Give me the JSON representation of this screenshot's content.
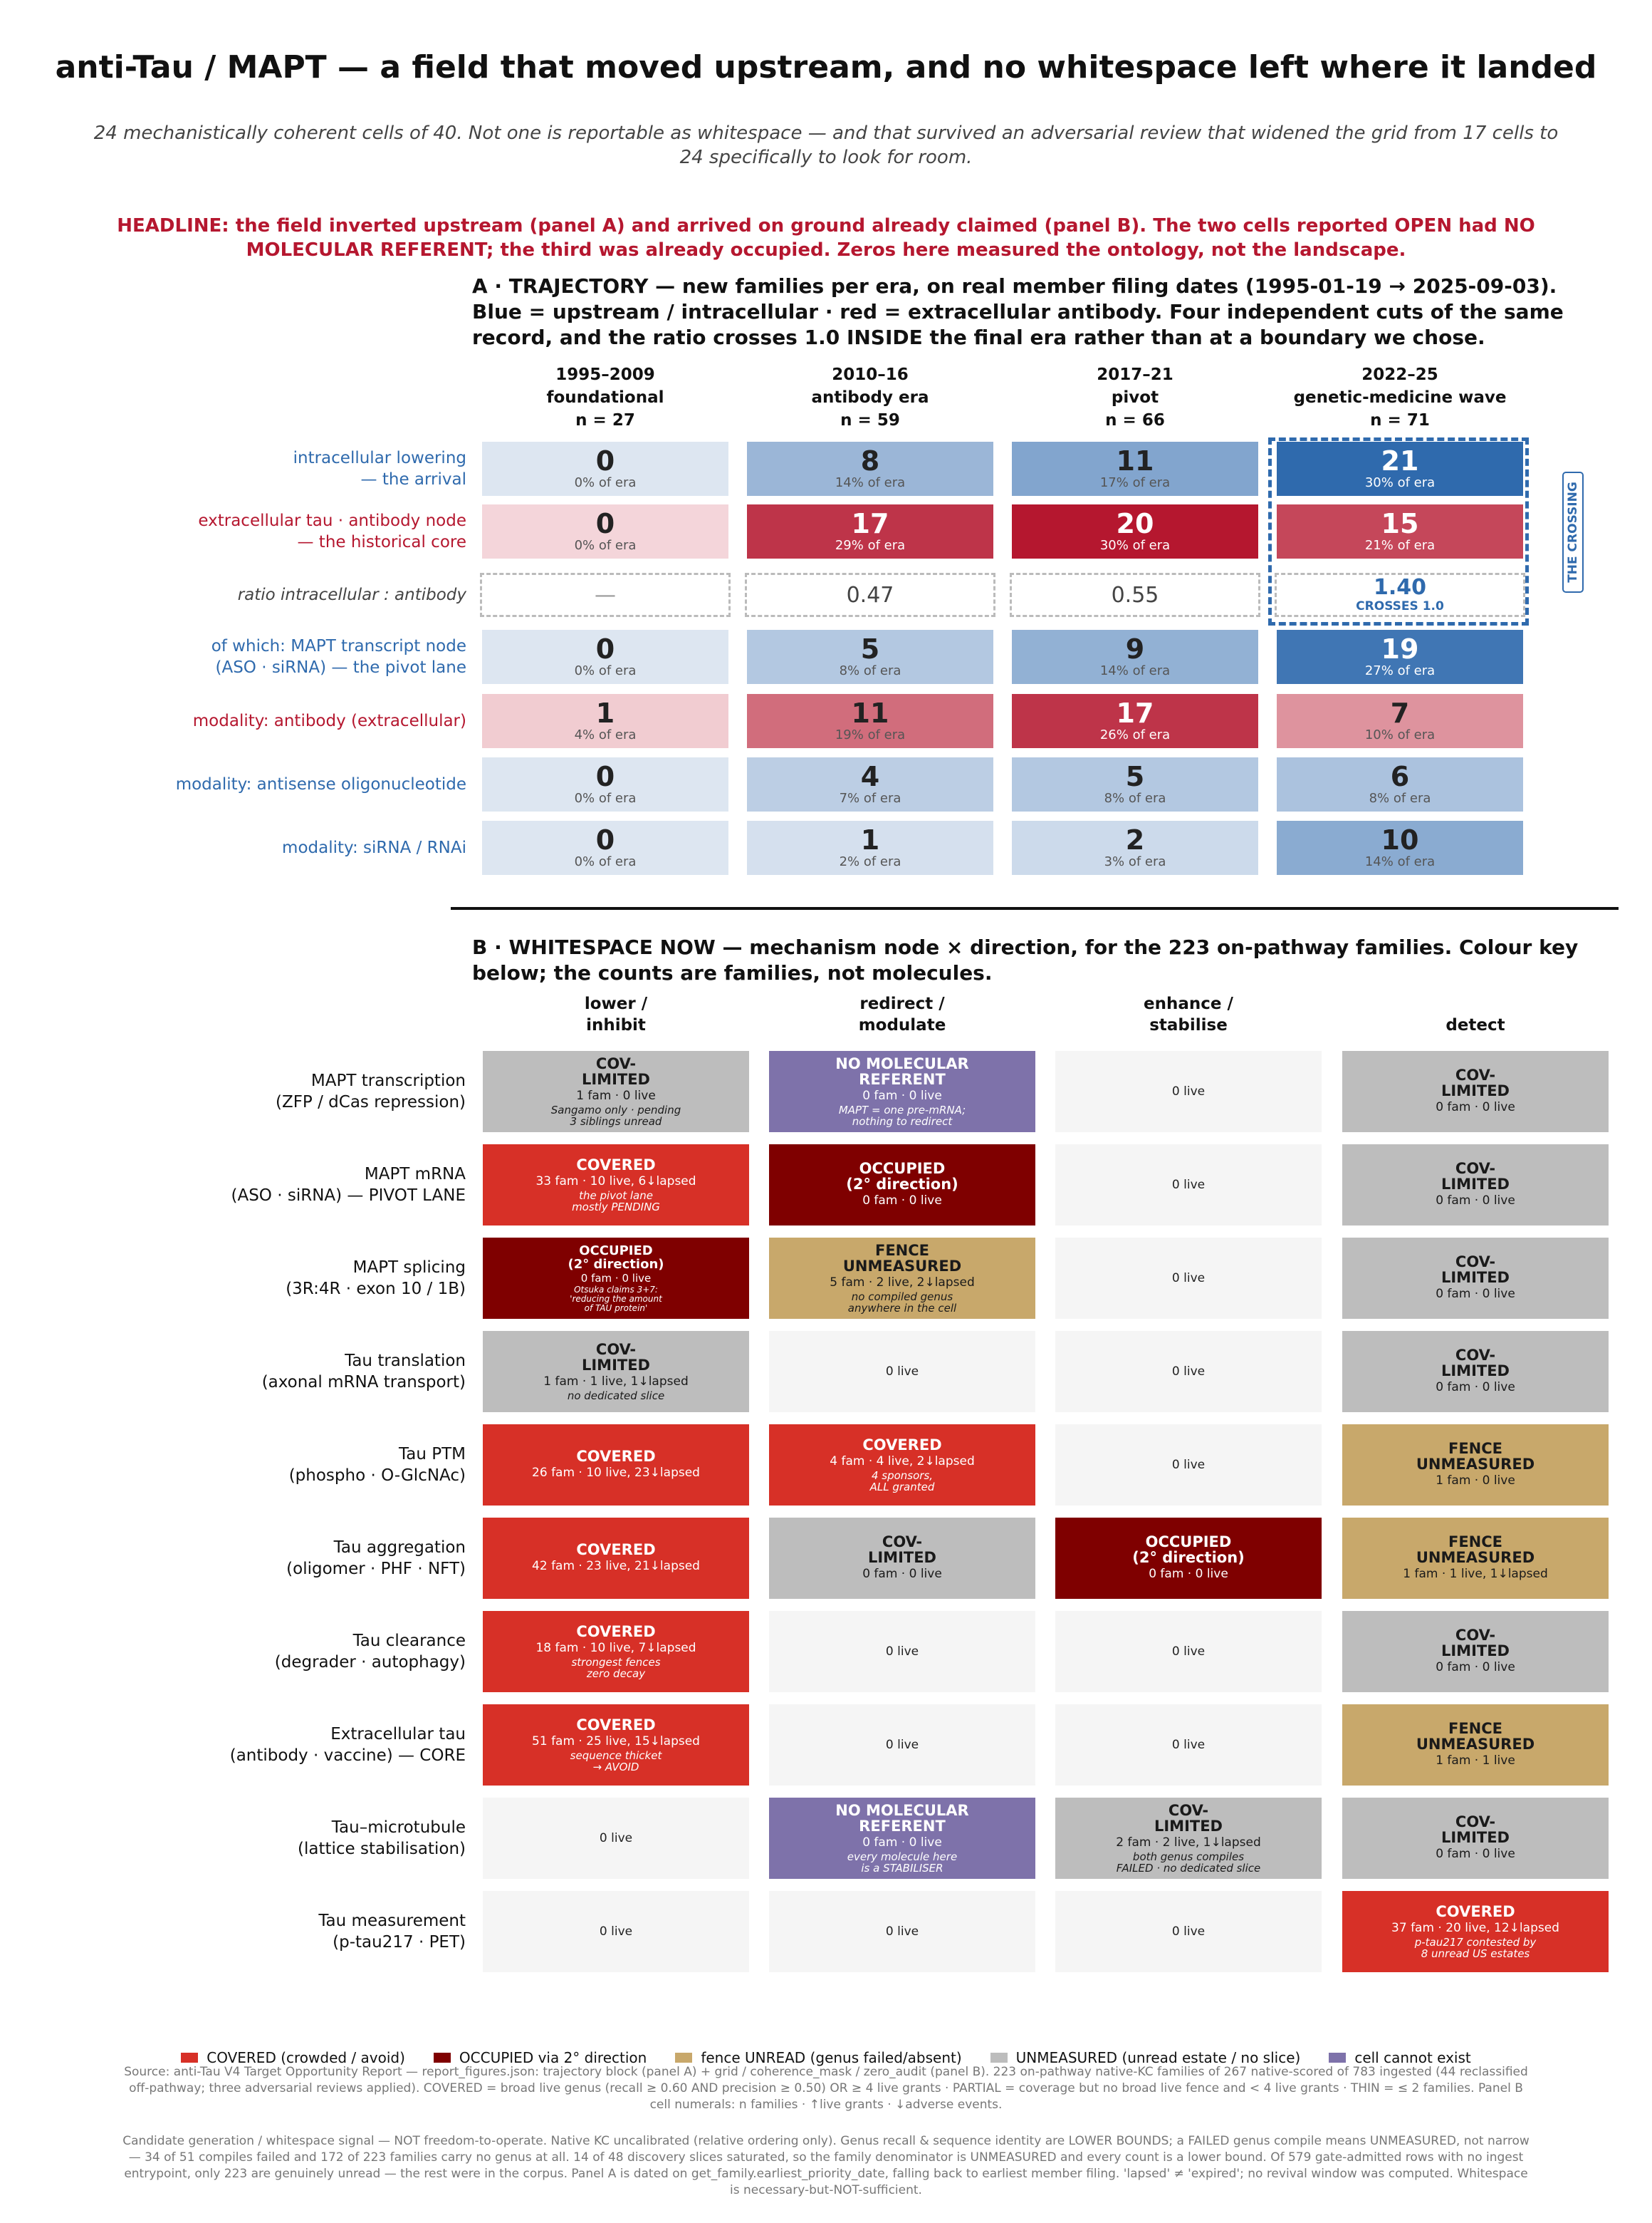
{
  "title": "anti-Tau / MAPT — a field that moved upstream, and no whitespace left where it landed",
  "subtitle": "24 mechanistically coherent cells of 40. Not one is reportable as whitespace — and that survived an adversarial review that widened the grid from 17 cells to 24 specifically to look for room.",
  "headline": "HEADLINE: the field inverted upstream (panel A) and arrived on ground already claimed (panel B). The two cells reported OPEN had NO MOLECULAR REFERENT; the third was already occupied. Zeros here measured the ontology, not the landscape.",
  "colors": {
    "upstream_blue": "#2f6aad",
    "antibody_red": "#b5172f",
    "covered": "#d73027",
    "occupied": "#7f0000",
    "fence": "#c8a86b",
    "unmeasured": "#bdbdbd",
    "no_referent": "#7e72aa",
    "empty": "#f5f5f5"
  },
  "chart_data": [
    {
      "type": "heatmap",
      "title": "A · TRAJECTORY — new families per era, on real member filing dates (1995-01-19 → 2025-09-03). Blue = upstream / intracellular · red = extracellular antibody.  Four independent cuts of the same record, and the ratio crosses 1.0 INSIDE the final era rather than at a boundary we chose.",
      "eras": [
        {
          "years": "1995–2009",
          "name": "foundational",
          "n": "n = 27"
        },
        {
          "years": "2010–16",
          "name": "antibody era",
          "n": "n = 59"
        },
        {
          "years": "2017–21",
          "name": "pivot",
          "n": "n = 66"
        },
        {
          "years": "2022–25",
          "name": "genetic-medicine wave",
          "n": "n = 71"
        }
      ],
      "rows": [
        {
          "label": "intracellular lowering\n— the arrival",
          "color": "blue",
          "values": [
            0,
            8,
            11,
            21
          ],
          "pcts": [
            "0% of era",
            "14% of era",
            "17% of era",
            "30% of era"
          ]
        },
        {
          "label": "extracellular tau · antibody node\n— the historical core",
          "color": "red",
          "values": [
            0,
            17,
            20,
            15
          ],
          "pcts": [
            "0% of era",
            "29% of era",
            "30% of era",
            "21% of era"
          ]
        },
        {
          "label": "of which: MAPT transcript node\n(ASO · siRNA) — the pivot lane",
          "color": "blue",
          "values": [
            0,
            5,
            9,
            19
          ],
          "pcts": [
            "0% of era",
            "8% of era",
            "14% of era",
            "27% of era"
          ]
        },
        {
          "label": "modality: antibody (extracellular)",
          "color": "red",
          "values": [
            1,
            11,
            17,
            7
          ],
          "pcts": [
            "4% of era",
            "19% of era",
            "26% of era",
            "10% of era"
          ]
        },
        {
          "label": "modality: antisense oligonucleotide",
          "color": "blue",
          "values": [
            0,
            4,
            5,
            6
          ],
          "pcts": [
            "0% of era",
            "7% of era",
            "8% of era",
            "8% of era"
          ]
        },
        {
          "label": "modality: siRNA / RNAi",
          "color": "blue",
          "values": [
            0,
            1,
            2,
            10
          ],
          "pcts": [
            "0% of era",
            "2% of era",
            "3% of era",
            "14% of era"
          ]
        }
      ],
      "ratio_row": {
        "label": "ratio  intracellular : antibody",
        "values": [
          "—",
          "0.47",
          "0.55",
          "1.40"
        ],
        "crossing_note": "CROSSES 1.0"
      },
      "crossing_label": "THE CROSSING"
    },
    {
      "type": "table",
      "title": "B · WHITESPACE NOW — mechanism node × direction, for the 223 on-pathway families. Colour key below; the counts are families, not molecules.",
      "columns": [
        "lower /\ninhibit",
        "redirect /\nmodulate",
        "enhance /\nstabilise",
        "detect"
      ],
      "rows": [
        {
          "label": "MAPT transcription\n(ZFP / dCas repression)",
          "cells": [
            {
              "kind": "unmeasured",
              "status": "COV-\nLIMITED",
              "counts": "1 fam  ·  0 live",
              "note": "Sangamo only · pending\n3 siblings unread"
            },
            {
              "kind": "no_referent",
              "status": "NO MOLECULAR\nREFERENT",
              "counts": "0 fam  ·  0 live",
              "note": "MAPT = one pre-mRNA;\nnothing to redirect"
            },
            {
              "kind": "empty",
              "status": "",
              "counts": "0 live",
              "note": ""
            },
            {
              "kind": "unmeasured",
              "status": "COV-\nLIMITED",
              "counts": "0 fam  ·  0 live",
              "note": ""
            }
          ]
        },
        {
          "label": "MAPT mRNA\n(ASO · siRNA) — PIVOT LANE",
          "cells": [
            {
              "kind": "covered",
              "status": "COVERED",
              "counts": "33 fam  ·  10 live, 6↓lapsed",
              "note": "the pivot lane\nmostly PENDING"
            },
            {
              "kind": "occupied",
              "status": "OCCUPIED\n(2° direction)",
              "counts": "0 fam  ·  0 live",
              "note": ""
            },
            {
              "kind": "empty",
              "status": "",
              "counts": "0 live",
              "note": ""
            },
            {
              "kind": "unmeasured",
              "status": "COV-\nLIMITED",
              "counts": "0 fam  ·  0 live",
              "note": ""
            }
          ]
        },
        {
          "label": "MAPT splicing\n(3R:4R · exon 10 / 1B)",
          "cells": [
            {
              "kind": "occupied",
              "status": "OCCUPIED\n(2° direction)",
              "counts": "0 fam  ·  0 live",
              "note": "Otsuka claims 3+7:\n'reducing the amount\nof TAU protein'",
              "compact": true
            },
            {
              "kind": "fence",
              "status": "FENCE\nUNMEASURED",
              "counts": "5 fam  ·  2 live, 2↓lapsed",
              "note": "no compiled genus\nanywhere in the cell"
            },
            {
              "kind": "empty",
              "status": "",
              "counts": "0 live",
              "note": ""
            },
            {
              "kind": "unmeasured",
              "status": "COV-\nLIMITED",
              "counts": "0 fam  ·  0 live",
              "note": ""
            }
          ]
        },
        {
          "label": "Tau translation\n(axonal mRNA transport)",
          "cells": [
            {
              "kind": "unmeasured",
              "status": "COV-\nLIMITED",
              "counts": "1 fam  ·  1 live, 1↓lapsed",
              "note": "no dedicated slice"
            },
            {
              "kind": "empty",
              "status": "",
              "counts": "0 live",
              "note": ""
            },
            {
              "kind": "empty",
              "status": "",
              "counts": "0 live",
              "note": ""
            },
            {
              "kind": "unmeasured",
              "status": "COV-\nLIMITED",
              "counts": "0 fam  ·  0 live",
              "note": ""
            }
          ]
        },
        {
          "label": "Tau PTM\n(phospho · O-GlcNAc)",
          "cells": [
            {
              "kind": "covered",
              "status": "COVERED",
              "counts": "26 fam  ·  10 live, 23↓lapsed",
              "note": ""
            },
            {
              "kind": "covered",
              "status": "COVERED",
              "counts": "4 fam  ·  4 live, 2↓lapsed",
              "note": "4 sponsors,\nALL granted"
            },
            {
              "kind": "empty",
              "status": "",
              "counts": "0 live",
              "note": ""
            },
            {
              "kind": "fence",
              "status": "FENCE\nUNMEASURED",
              "counts": "1 fam  ·  0 live",
              "note": ""
            }
          ]
        },
        {
          "label": "Tau aggregation\n(oligomer · PHF · NFT)",
          "cells": [
            {
              "kind": "covered",
              "status": "COVERED",
              "counts": "42 fam  ·  23 live, 21↓lapsed",
              "note": ""
            },
            {
              "kind": "unmeasured",
              "status": "COV-\nLIMITED",
              "counts": "0 fam  ·  0 live",
              "note": ""
            },
            {
              "kind": "occupied",
              "status": "OCCUPIED\n(2° direction)",
              "counts": "0 fam  ·  0 live",
              "note": ""
            },
            {
              "kind": "fence",
              "status": "FENCE\nUNMEASURED",
              "counts": "1 fam  ·  1 live, 1↓lapsed",
              "note": ""
            }
          ]
        },
        {
          "label": "Tau clearance\n(degrader · autophagy)",
          "cells": [
            {
              "kind": "covered",
              "status": "COVERED",
              "counts": "18 fam  ·  10 live, 7↓lapsed",
              "note": "strongest fences\nzero decay"
            },
            {
              "kind": "empty",
              "status": "",
              "counts": "0 live",
              "note": ""
            },
            {
              "kind": "empty",
              "status": "",
              "counts": "0 live",
              "note": ""
            },
            {
              "kind": "unmeasured",
              "status": "COV-\nLIMITED",
              "counts": "0 fam  ·  0 live",
              "note": ""
            }
          ]
        },
        {
          "label": "Extracellular tau\n(antibody · vaccine) — CORE",
          "cells": [
            {
              "kind": "covered",
              "status": "COVERED",
              "counts": "51 fam  ·  25 live, 15↓lapsed",
              "note": "sequence thicket\n→ AVOID"
            },
            {
              "kind": "empty",
              "status": "",
              "counts": "0 live",
              "note": ""
            },
            {
              "kind": "empty",
              "status": "",
              "counts": "0 live",
              "note": ""
            },
            {
              "kind": "fence",
              "status": "FENCE\nUNMEASURED",
              "counts": "1 fam  ·  1 live",
              "note": ""
            }
          ]
        },
        {
          "label": "Tau–microtubule\n(lattice stabilisation)",
          "cells": [
            {
              "kind": "empty",
              "status": "",
              "counts": "0 live",
              "note": ""
            },
            {
              "kind": "no_referent",
              "status": "NO MOLECULAR\nREFERENT",
              "counts": "0 fam  ·  0 live",
              "note": "every molecule here\nis a STABILISER"
            },
            {
              "kind": "unmeasured",
              "status": "COV-\nLIMITED",
              "counts": "2 fam  ·  2 live, 1↓lapsed",
              "note": "both genus compiles\nFAILED · no dedicated slice"
            },
            {
              "kind": "unmeasured",
              "status": "COV-\nLIMITED",
              "counts": "0 fam  ·  0 live",
              "note": ""
            }
          ]
        },
        {
          "label": "Tau measurement\n(p-tau217 · PET)",
          "cells": [
            {
              "kind": "empty",
              "status": "",
              "counts": "0 live",
              "note": ""
            },
            {
              "kind": "empty",
              "status": "",
              "counts": "0 live",
              "note": ""
            },
            {
              "kind": "empty",
              "status": "",
              "counts": "0 live",
              "note": ""
            },
            {
              "kind": "covered",
              "status": "COVERED",
              "counts": "37 fam  ·  20 live, 12↓lapsed",
              "note": "p-tau217 contested by\n8 unread US estates"
            }
          ]
        }
      ]
    }
  ],
  "legend": [
    {
      "kind": "covered",
      "label": "COVERED (crowded / avoid)"
    },
    {
      "kind": "occupied",
      "label": "OCCUPIED via 2° direction"
    },
    {
      "kind": "fence",
      "label": "fence UNREAD (genus failed/absent)"
    },
    {
      "kind": "unmeasured",
      "label": "UNMEASURED (unread estate / no slice)"
    },
    {
      "kind": "no_referent",
      "label": "cell cannot exist"
    }
  ],
  "source_note": "Source: anti-Tau V4 Target Opportunity Report — report_figures.json: trajectory block (panel A) + grid / coherence_mask / zero_audit (panel B).  223 on-pathway native-KC families of 267 native-scored of 783 ingested (44 reclassified off-pathway; three adversarial reviews applied).  COVERED = broad live genus (recall ≥ 0.60 AND precision ≥ 0.50) OR ≥ 4 live grants · PARTIAL = coverage but no broad live fence and < 4 live grants · THIN = ≤ 2 families.  Panel B cell numerals: n families · ↑live grants · ↓adverse events.",
  "disclaimer": "Candidate generation / whitespace signal — NOT freedom-to-operate. Native KC uncalibrated (relative ordering only). Genus recall & sequence identity are LOWER BOUNDS; a FAILED genus compile means UNMEASURED, not narrow — 34 of 51 compiles failed and 172 of 223 families carry no genus at all. 14 of 48 discovery slices saturated, so the family denominator is UNMEASURED and every count is a lower bound. Of 579 gate-admitted rows with no ingest entrypoint, only 223 are genuinely unread — the rest were in the corpus. Panel A is dated on get_family.earliest_priority_date, falling back to earliest member filing. 'lapsed' ≠ 'expired'; no revival window was computed. Whitespace is necessary-but-NOT-sufficient."
}
